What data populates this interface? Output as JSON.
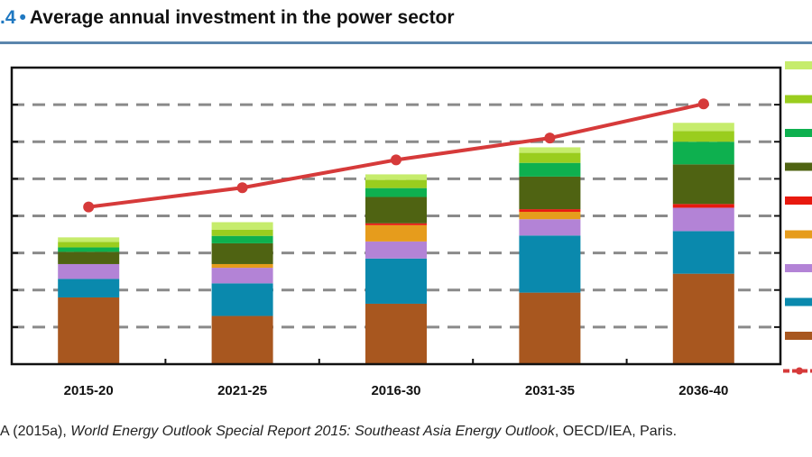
{
  "header": {
    "figure_number": ".4",
    "bullet": "•",
    "title": "Average annual investment in the power sector"
  },
  "source": {
    "prefix": "A (2015a), ",
    "italic": "World Energy Outlook Special Report 2015: Southeast Asia Energy Outlook",
    "suffix": ", OECD/IEA, Paris."
  },
  "chart_data": {
    "type": "bar",
    "stacked": true,
    "title": "Average annual investment in the power sector",
    "xlabel": "",
    "ylabel": "",
    "ylim": [
      0,
      8
    ],
    "y_units_note": "values in gridline steps; y-axis tick labels not visible",
    "grid": true,
    "legend_position": "right",
    "categories": [
      "2015-20",
      "2021-25",
      "2016-30",
      "2031-35",
      "2036-40"
    ],
    "series": [
      {
        "name": "",
        "color": "#a8571f",
        "values": [
          1.8,
          1.3,
          1.63,
          1.93,
          2.44
        ]
      },
      {
        "name": "",
        "color": "#0a89ad",
        "values": [
          0.5,
          0.88,
          1.22,
          1.54,
          1.15
        ]
      },
      {
        "name": "",
        "color": "#b383d6",
        "values": [
          0.4,
          0.42,
          0.46,
          0.44,
          0.63
        ]
      },
      {
        "name": "",
        "color": "#e69c1c",
        "values": [
          0.0,
          0.1,
          0.44,
          0.2,
          0.0
        ]
      },
      {
        "name": "",
        "color": "#e8190f",
        "values": [
          0.0,
          0.0,
          0.05,
          0.07,
          0.1
        ]
      },
      {
        "name": "",
        "color": "#4f6312",
        "values": [
          0.33,
          0.56,
          0.71,
          0.88,
          1.07
        ]
      },
      {
        "name": "",
        "color": "#0eb04f",
        "values": [
          0.12,
          0.2,
          0.24,
          0.37,
          0.61
        ]
      },
      {
        "name": "",
        "color": "#9acd1e",
        "values": [
          0.15,
          0.17,
          0.22,
          0.27,
          0.29
        ]
      },
      {
        "name": "",
        "color": "#c6ec6c",
        "values": [
          0.12,
          0.2,
          0.15,
          0.15,
          0.22
        ]
      }
    ],
    "line_series": {
      "name": "",
      "color": "#d63a3a",
      "values": [
        4.24,
        4.76,
        5.51,
        6.1,
        7.02
      ]
    }
  }
}
